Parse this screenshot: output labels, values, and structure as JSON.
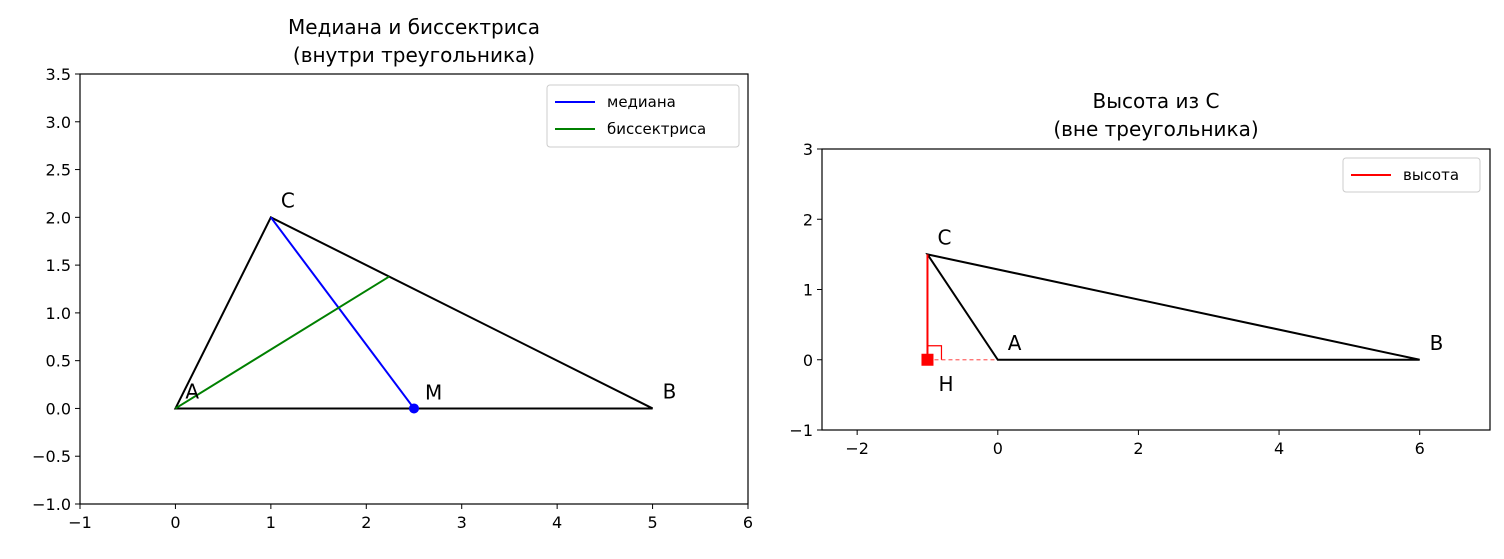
{
  "colors": {
    "triangle": "#000000",
    "median": "#0000ff",
    "bisector": "#008000",
    "altitude": "#ff0000"
  },
  "chart_data": [
    {
      "type": "line",
      "title": [
        "Медиана и биссектриса",
        "(внутри треугольника)"
      ],
      "xlim": [
        -1,
        6
      ],
      "ylim": [
        -1.0,
        3.5
      ],
      "xticks": [
        "−1",
        "0",
        "1",
        "2",
        "3",
        "4",
        "5",
        "6"
      ],
      "yticks": [
        "−1.0",
        "−0.5",
        "0.0",
        "0.5",
        "1.0",
        "1.5",
        "2.0",
        "2.5",
        "3.0",
        "3.5"
      ],
      "legend": {
        "position": "top-right",
        "entries": [
          {
            "label": "медиана",
            "color": "#0000ff"
          },
          {
            "label": "биссектриса",
            "color": "#008000"
          }
        ]
      },
      "triangle": [
        {
          "name": "A",
          "x": 0,
          "y": 0
        },
        {
          "name": "B",
          "x": 5,
          "y": 0
        },
        {
          "name": "C",
          "x": 1,
          "y": 2
        }
      ],
      "series": [
        {
          "name": "медиана",
          "color": "#0000ff",
          "x": [
            1,
            2.5
          ],
          "y": [
            2,
            0
          ]
        },
        {
          "name": "биссектриса",
          "color": "#008000",
          "x": [
            0,
            2.24
          ],
          "y": [
            0,
            1.38
          ]
        }
      ],
      "points": [
        {
          "name": "M",
          "x": 2.5,
          "y": 0
        }
      ]
    },
    {
      "type": "line",
      "title": [
        "Высота из C",
        "(вне треугольника)"
      ],
      "xlim": [
        -2.5,
        7
      ],
      "ylim": [
        -1,
        3
      ],
      "xticks": [
        "−2",
        "0",
        "2",
        "4",
        "6"
      ],
      "yticks": [
        "−1",
        "0",
        "1",
        "2",
        "3"
      ],
      "legend": {
        "position": "top-right",
        "entries": [
          {
            "label": "высота",
            "color": "#ff0000"
          }
        ]
      },
      "triangle": [
        {
          "name": "A",
          "x": 0,
          "y": 0
        },
        {
          "name": "B",
          "x": 6,
          "y": 0
        },
        {
          "name": "C",
          "x": -1,
          "y": 1.5
        }
      ],
      "series": [
        {
          "name": "высота",
          "color": "#ff0000",
          "x": [
            -1,
            -1
          ],
          "y": [
            1.5,
            0
          ]
        }
      ],
      "extension": {
        "x": [
          -1,
          0
        ],
        "y": [
          0,
          0
        ]
      },
      "points": [
        {
          "name": "H",
          "x": -1,
          "y": 0
        }
      ]
    }
  ]
}
